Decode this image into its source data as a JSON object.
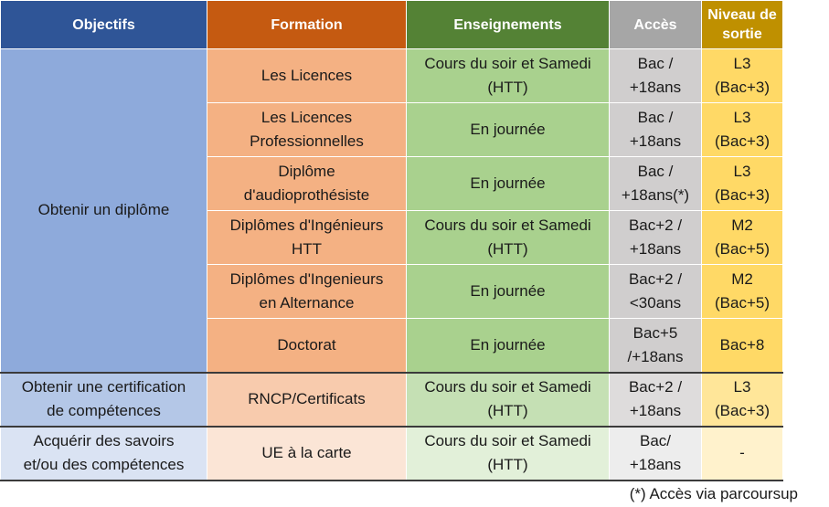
{
  "headers": {
    "objectifs": "Objectifs",
    "formation": "Formation",
    "enseignements": "Enseignements",
    "acces": "Accès",
    "niveau_line1": "Niveau",
    "niveau_line2": "de sortie"
  },
  "objectives": [
    "Obtenir un diplôme",
    [
      "Obtenir une certification",
      "de compétences"
    ],
    [
      "Acquérir des savoirs",
      "et/ou des compétences"
    ]
  ],
  "rows": [
    {
      "formation": [
        "Les Licences"
      ],
      "enseignement": [
        "Cours du soir et Samedi",
        "(HTT)"
      ],
      "acces": [
        "Bac /",
        "+18ans"
      ],
      "niveau": [
        "L3",
        "(Bac+3)"
      ]
    },
    {
      "formation": [
        "Les Licences",
        "Professionnelles"
      ],
      "enseignement": [
        "En journée"
      ],
      "acces": [
        "Bac /",
        "+18ans"
      ],
      "niveau": [
        "L3",
        "(Bac+3)"
      ]
    },
    {
      "formation": [
        "Diplôme",
        "d'audioprothésiste"
      ],
      "enseignement": [
        "En journée"
      ],
      "acces": [
        "Bac /",
        "+18ans(*)"
      ],
      "niveau": [
        "L3",
        "(Bac+3)"
      ]
    },
    {
      "formation": [
        "Diplômes d'Ingénieurs",
        "HTT"
      ],
      "enseignement": [
        "Cours du soir et Samedi",
        "(HTT)"
      ],
      "acces": [
        "Bac+2 /",
        "+18ans"
      ],
      "niveau": [
        "M2",
        "(Bac+5)"
      ]
    },
    {
      "formation": [
        "Diplômes d'Ingenieurs",
        "en Alternance"
      ],
      "enseignement": [
        "En journée"
      ],
      "acces": [
        "Bac+2 /",
        "<30ans"
      ],
      "niveau": [
        "M2",
        "(Bac+5)"
      ]
    },
    {
      "formation": [
        "Doctorat"
      ],
      "enseignement": [
        "En journée"
      ],
      "acces": [
        "Bac+5",
        "/+18ans"
      ],
      "niveau": [
        "Bac+8"
      ]
    },
    {
      "formation": [
        "RNCP/Certificats"
      ],
      "enseignement": [
        "Cours du soir et Samedi",
        "(HTT)"
      ],
      "acces": [
        "Bac+2 /",
        "+18ans"
      ],
      "niveau": [
        "L3",
        "(Bac+3)"
      ]
    },
    {
      "formation": [
        "UE à la carte"
      ],
      "enseignement": [
        "Cours du soir et Samedi",
        "(HTT)"
      ],
      "acces": [
        "Bac/",
        "+18ans"
      ],
      "niveau": [
        "-"
      ]
    }
  ],
  "footnote": "(*) Accès via parcoursup",
  "colors": {
    "header_objectifs": "#2f5597",
    "header_formation": "#c55a11",
    "header_enseignements": "#548235",
    "header_acces": "#a6a6a6",
    "header_niveau": "#bf9000"
  }
}
